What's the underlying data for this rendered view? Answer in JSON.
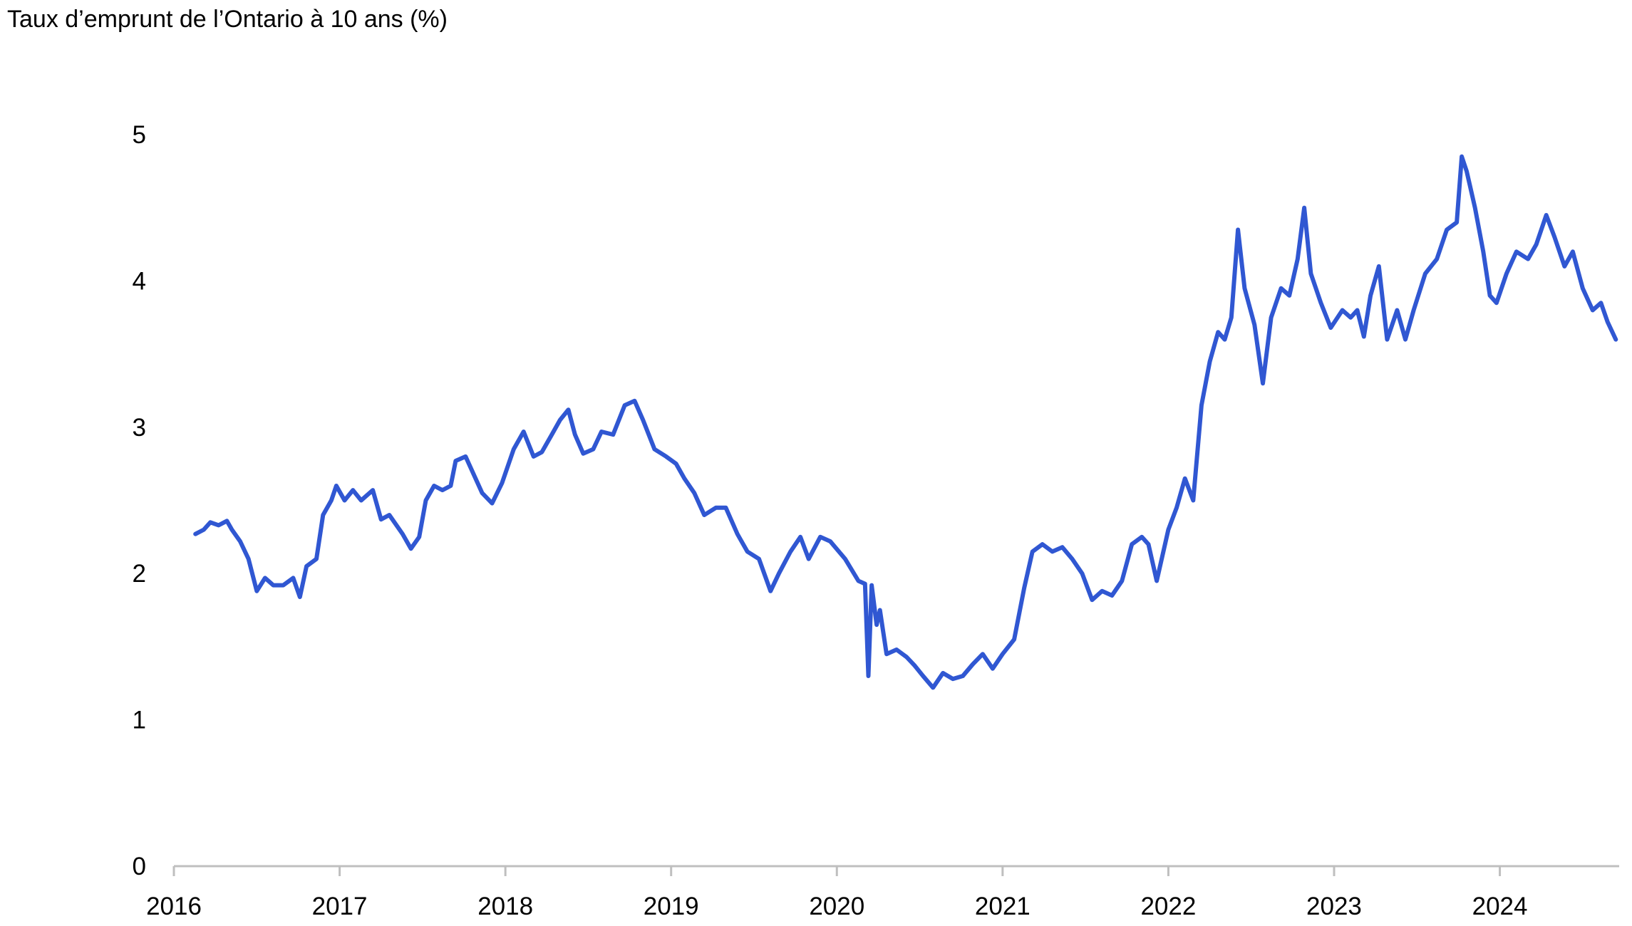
{
  "chart_data": {
    "type": "line",
    "title": "Taux d’emprunt de l’Ontario à 10 ans (%)",
    "xlabel": "",
    "ylabel": "",
    "xlim": [
      2016.0,
      2024.72
    ],
    "ylim": [
      0,
      5
    ],
    "grid": false,
    "legend": "none",
    "x_ticks": [
      "2016",
      "2017",
      "2018",
      "2019",
      "2020",
      "2021",
      "2022",
      "2023",
      "2024"
    ],
    "y_ticks": [
      "0",
      "1",
      "2",
      "3",
      "4",
      "5"
    ],
    "line_color": "#3057d2",
    "axis_color": "#bfbfbf",
    "series": [
      {
        "points": [
          [
            2016.13,
            2.27
          ],
          [
            2016.18,
            2.3
          ],
          [
            2016.22,
            2.35
          ],
          [
            2016.27,
            2.33
          ],
          [
            2016.32,
            2.36
          ],
          [
            2016.35,
            2.3
          ],
          [
            2016.4,
            2.22
          ],
          [
            2016.45,
            2.1
          ],
          [
            2016.5,
            1.88
          ],
          [
            2016.55,
            1.97
          ],
          [
            2016.6,
            1.92
          ],
          [
            2016.66,
            1.92
          ],
          [
            2016.72,
            1.97
          ],
          [
            2016.76,
            1.84
          ],
          [
            2016.8,
            2.05
          ],
          [
            2016.86,
            2.1
          ],
          [
            2016.9,
            2.4
          ],
          [
            2016.95,
            2.5
          ],
          [
            2016.98,
            2.6
          ],
          [
            2017.03,
            2.5
          ],
          [
            2017.08,
            2.57
          ],
          [
            2017.13,
            2.5
          ],
          [
            2017.2,
            2.57
          ],
          [
            2017.25,
            2.37
          ],
          [
            2017.3,
            2.4
          ],
          [
            2017.38,
            2.27
          ],
          [
            2017.43,
            2.17
          ],
          [
            2017.48,
            2.25
          ],
          [
            2017.52,
            2.5
          ],
          [
            2017.57,
            2.6
          ],
          [
            2017.62,
            2.57
          ],
          [
            2017.67,
            2.6
          ],
          [
            2017.7,
            2.77
          ],
          [
            2017.76,
            2.8
          ],
          [
            2017.82,
            2.65
          ],
          [
            2017.86,
            2.55
          ],
          [
            2017.92,
            2.48
          ],
          [
            2017.98,
            2.62
          ],
          [
            2018.05,
            2.85
          ],
          [
            2018.11,
            2.97
          ],
          [
            2018.17,
            2.8
          ],
          [
            2018.22,
            2.83
          ],
          [
            2018.28,
            2.95
          ],
          [
            2018.33,
            3.05
          ],
          [
            2018.38,
            3.12
          ],
          [
            2018.42,
            2.95
          ],
          [
            2018.47,
            2.82
          ],
          [
            2018.53,
            2.85
          ],
          [
            2018.58,
            2.97
          ],
          [
            2018.65,
            2.95
          ],
          [
            2018.72,
            3.15
          ],
          [
            2018.78,
            3.18
          ],
          [
            2018.83,
            3.05
          ],
          [
            2018.9,
            2.85
          ],
          [
            2018.97,
            2.8
          ],
          [
            2019.03,
            2.75
          ],
          [
            2019.08,
            2.65
          ],
          [
            2019.14,
            2.55
          ],
          [
            2019.2,
            2.4
          ],
          [
            2019.27,
            2.45
          ],
          [
            2019.33,
            2.45
          ],
          [
            2019.4,
            2.27
          ],
          [
            2019.46,
            2.15
          ],
          [
            2019.53,
            2.1
          ],
          [
            2019.6,
            1.88
          ],
          [
            2019.65,
            2.0
          ],
          [
            2019.72,
            2.15
          ],
          [
            2019.78,
            2.25
          ],
          [
            2019.83,
            2.1
          ],
          [
            2019.9,
            2.25
          ],
          [
            2019.96,
            2.22
          ],
          [
            2020.05,
            2.1
          ],
          [
            2020.13,
            1.95
          ],
          [
            2020.17,
            1.93
          ],
          [
            2020.19,
            1.3
          ],
          [
            2020.21,
            1.92
          ],
          [
            2020.24,
            1.65
          ],
          [
            2020.26,
            1.75
          ],
          [
            2020.3,
            1.45
          ],
          [
            2020.36,
            1.48
          ],
          [
            2020.42,
            1.43
          ],
          [
            2020.47,
            1.37
          ],
          [
            2020.52,
            1.3
          ],
          [
            2020.58,
            1.22
          ],
          [
            2020.64,
            1.32
          ],
          [
            2020.7,
            1.28
          ],
          [
            2020.76,
            1.3
          ],
          [
            2020.82,
            1.38
          ],
          [
            2020.88,
            1.45
          ],
          [
            2020.94,
            1.35
          ],
          [
            2021.0,
            1.45
          ],
          [
            2021.07,
            1.55
          ],
          [
            2021.13,
            1.9
          ],
          [
            2021.18,
            2.15
          ],
          [
            2021.24,
            2.2
          ],
          [
            2021.3,
            2.15
          ],
          [
            2021.36,
            2.18
          ],
          [
            2021.42,
            2.1
          ],
          [
            2021.48,
            2.0
          ],
          [
            2021.54,
            1.82
          ],
          [
            2021.6,
            1.88
          ],
          [
            2021.66,
            1.85
          ],
          [
            2021.72,
            1.95
          ],
          [
            2021.78,
            2.2
          ],
          [
            2021.84,
            2.25
          ],
          [
            2021.88,
            2.2
          ],
          [
            2021.93,
            1.95
          ],
          [
            2022.0,
            2.3
          ],
          [
            2022.05,
            2.45
          ],
          [
            2022.1,
            2.65
          ],
          [
            2022.15,
            2.5
          ],
          [
            2022.2,
            3.15
          ],
          [
            2022.25,
            3.45
          ],
          [
            2022.3,
            3.65
          ],
          [
            2022.34,
            3.6
          ],
          [
            2022.38,
            3.75
          ],
          [
            2022.42,
            4.35
          ],
          [
            2022.46,
            3.95
          ],
          [
            2022.52,
            3.7
          ],
          [
            2022.57,
            3.3
          ],
          [
            2022.62,
            3.75
          ],
          [
            2022.68,
            3.95
          ],
          [
            2022.73,
            3.9
          ],
          [
            2022.78,
            4.15
          ],
          [
            2022.82,
            4.5
          ],
          [
            2022.86,
            4.05
          ],
          [
            2022.92,
            3.85
          ],
          [
            2022.98,
            3.68
          ],
          [
            2023.05,
            3.8
          ],
          [
            2023.1,
            3.75
          ],
          [
            2023.14,
            3.8
          ],
          [
            2023.18,
            3.62
          ],
          [
            2023.22,
            3.9
          ],
          [
            2023.27,
            4.1
          ],
          [
            2023.32,
            3.6
          ],
          [
            2023.38,
            3.8
          ],
          [
            2023.43,
            3.6
          ],
          [
            2023.48,
            3.8
          ],
          [
            2023.55,
            4.05
          ],
          [
            2023.62,
            4.15
          ],
          [
            2023.68,
            4.35
          ],
          [
            2023.74,
            4.4
          ],
          [
            2023.77,
            4.85
          ],
          [
            2023.8,
            4.75
          ],
          [
            2023.85,
            4.5
          ],
          [
            2023.9,
            4.2
          ],
          [
            2023.94,
            3.9
          ],
          [
            2023.98,
            3.85
          ],
          [
            2024.04,
            4.05
          ],
          [
            2024.1,
            4.2
          ],
          [
            2024.17,
            4.15
          ],
          [
            2024.22,
            4.25
          ],
          [
            2024.28,
            4.45
          ],
          [
            2024.33,
            4.3
          ],
          [
            2024.39,
            4.1
          ],
          [
            2024.44,
            4.2
          ],
          [
            2024.5,
            3.95
          ],
          [
            2024.56,
            3.8
          ],
          [
            2024.61,
            3.85
          ],
          [
            2024.65,
            3.72
          ],
          [
            2024.7,
            3.6
          ]
        ]
      }
    ]
  }
}
